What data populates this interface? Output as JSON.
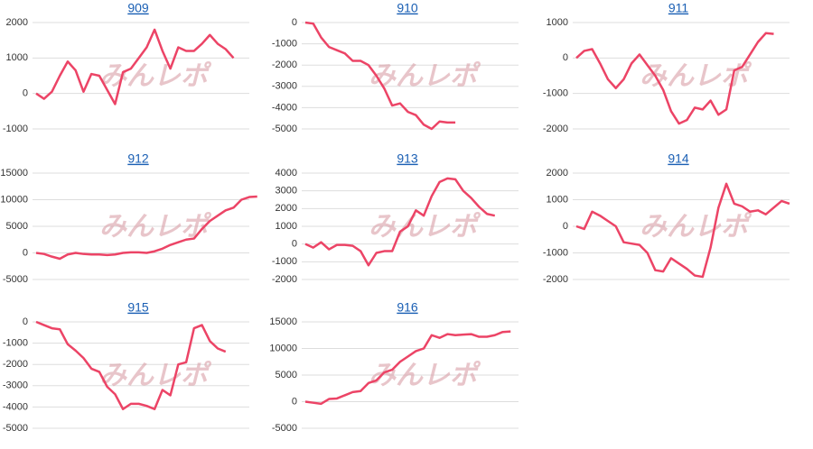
{
  "watermark": "みんレポ",
  "chart_data": [
    {
      "type": "line",
      "title": "909",
      "color": "#ec4466",
      "ylim": [
        -1000,
        2000
      ],
      "yticks": [
        2000,
        1000,
        0,
        -1000
      ],
      "grid": true,
      "values": [
        0,
        -150,
        50,
        500,
        900,
        650,
        50,
        550,
        500,
        100,
        -300,
        600,
        700,
        1000,
        1300,
        1800,
        1200,
        700,
        1300,
        1200,
        1200,
        1400,
        1650,
        1400,
        1250,
        1000
      ]
    },
    {
      "type": "line",
      "title": "910",
      "color": "#ec4466",
      "ylim": [
        -5000,
        0
      ],
      "yticks": [
        0,
        -1000,
        -2000,
        -3000,
        -4000,
        -5000
      ],
      "grid": true,
      "values": [
        0,
        -50,
        -700,
        -1150,
        -1300,
        -1450,
        -1800,
        -1800,
        -2000,
        -2500,
        -3100,
        -3900,
        -3800,
        -4200,
        -4350,
        -4800,
        -5000,
        -4650,
        -4700,
        -4700
      ]
    },
    {
      "type": "line",
      "title": "911",
      "color": "#ec4466",
      "ylim": [
        -2000,
        1000
      ],
      "yticks": [
        1000,
        0,
        -1000,
        -2000
      ],
      "grid": true,
      "values": [
        0,
        200,
        250,
        -150,
        -600,
        -850,
        -600,
        -150,
        100,
        -200,
        -500,
        -900,
        -1500,
        -1850,
        -1750,
        -1400,
        -1450,
        -1200,
        -1600,
        -1450,
        -350,
        -250,
        100,
        450,
        700,
        680
      ]
    },
    {
      "type": "line",
      "title": "912",
      "color": "#ec4466",
      "ylim": [
        -5000,
        15000
      ],
      "yticks": [
        15000,
        10000,
        5000,
        0,
        -5000
      ],
      "grid": true,
      "values": [
        0,
        -200,
        -700,
        -1100,
        -300,
        0,
        -200,
        -300,
        -300,
        -400,
        -300,
        0,
        100,
        100,
        0,
        300,
        800,
        1500,
        2000,
        2500,
        2700,
        4500,
        6000,
        7000,
        8000,
        8500,
        10000,
        10500,
        10600
      ]
    },
    {
      "type": "line",
      "title": "913",
      "color": "#ec4466",
      "ylim": [
        -2000,
        4000
      ],
      "yticks": [
        4000,
        3000,
        2000,
        1000,
        0,
        -1000,
        -2000
      ],
      "grid": true,
      "values": [
        0,
        -200,
        100,
        -300,
        -50,
        -50,
        -100,
        -400,
        -1200,
        -500,
        -400,
        -400,
        700,
        1000,
        1900,
        1600,
        2700,
        3500,
        3700,
        3650,
        3000,
        2600,
        2100,
        1700,
        1600
      ]
    },
    {
      "type": "line",
      "title": "914",
      "color": "#ec4466",
      "ylim": [
        -2000,
        2000
      ],
      "yticks": [
        2000,
        1000,
        0,
        -1000,
        -2000
      ],
      "grid": true,
      "values": [
        0,
        -100,
        550,
        400,
        200,
        0,
        -600,
        -650,
        -700,
        -1000,
        -1650,
        -1700,
        -1200,
        -1400,
        -1600,
        -1850,
        -1900,
        -800,
        700,
        1600,
        850,
        750,
        550,
        600,
        450,
        700,
        950,
        850
      ]
    },
    {
      "type": "line",
      "title": "915",
      "color": "#ec4466",
      "ylim": [
        -5000,
        0
      ],
      "yticks": [
        0,
        -1000,
        -2000,
        -3000,
        -4000,
        -5000
      ],
      "grid": true,
      "values": [
        0,
        -150,
        -300,
        -350,
        -1050,
        -1350,
        -1700,
        -2200,
        -2350,
        -3050,
        -3400,
        -4100,
        -3850,
        -3850,
        -3950,
        -4100,
        -3200,
        -3450,
        -2000,
        -1900,
        -300,
        -150,
        -900,
        -1250,
        -1400
      ]
    },
    {
      "type": "line",
      "title": "916",
      "color": "#ec4466",
      "ylim": [
        -5000,
        15000
      ],
      "yticks": [
        15000,
        10000,
        5000,
        0,
        -5000
      ],
      "grid": true,
      "values": [
        0,
        -200,
        -400,
        500,
        600,
        1200,
        1800,
        2000,
        3500,
        4000,
        5500,
        6000,
        7500,
        8500,
        9500,
        10000,
        12500,
        12000,
        12700,
        12500,
        12600,
        12700,
        12200,
        12200,
        12500,
        13100,
        13200
      ]
    }
  ]
}
